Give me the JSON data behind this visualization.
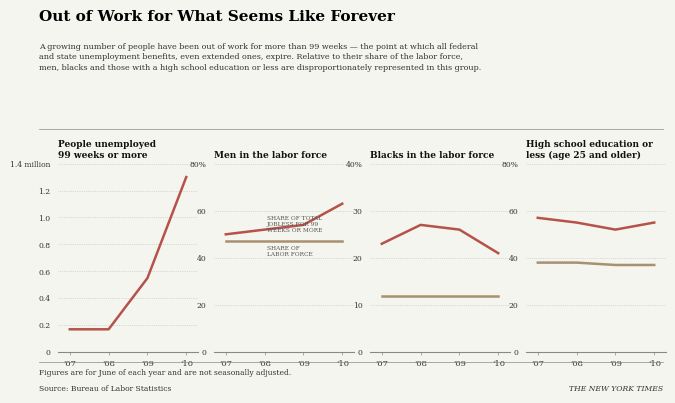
{
  "title": "Out of Work for What Seems Like Forever",
  "subtitle": "A growing number of people have been out of work for more than 99 weeks — the point at which all federal\nand state unemployment benefits, even extended ones, expire. Relative to their share of the labor force,\nmen, blacks and those with a high school education or less are disproportionately represented in this group.",
  "footer1": "Figures are for June of each year and are not seasonally adjusted.",
  "footer2": "Source: Bureau of Labor Statistics",
  "footer3": "THE NEW YORK TIMES",
  "panel_titles": [
    "People unemployed\n99 weeks or more",
    "Men in the labor force",
    "Blacks in the labor force",
    "High school education or\nless (age 25 and older)"
  ],
  "years": [
    "'07",
    "'08",
    "'09",
    "'10"
  ],
  "panel1": {
    "line": [
      0.17,
      0.17,
      0.55,
      1.3
    ],
    "ylim": [
      0,
      1.4
    ],
    "yticks": [
      0,
      0.2,
      0.4,
      0.6,
      0.8,
      1.0,
      1.2,
      1.4
    ],
    "ytick_labels": [
      "0",
      "0.2",
      "0.4",
      "0.6",
      "0.8",
      "1.0",
      "1.2",
      "1.4 million"
    ],
    "color_line": "#b5534a"
  },
  "panel2": {
    "line_red": [
      50,
      52,
      54,
      63
    ],
    "line_tan": [
      47,
      47,
      47,
      47
    ],
    "ylim": [
      0,
      80
    ],
    "yticks": [
      0,
      20,
      40,
      60,
      80
    ],
    "ytick_labels": [
      "0",
      "20",
      "40",
      "60",
      "80%"
    ],
    "annotation_red": "SHARE OF TOTAL\nJOBLESS FOR 99\nWEEKS OR MORE",
    "annotation_tan": "SHARE OF\nLABOR FORCE",
    "color_red": "#b5534a",
    "color_tan": "#a89070"
  },
  "panel3": {
    "line_red": [
      23,
      27,
      26,
      21
    ],
    "line_tan": [
      12,
      12,
      12,
      12
    ],
    "ylim": [
      0,
      40
    ],
    "yticks": [
      0,
      10,
      20,
      30,
      40
    ],
    "ytick_labels": [
      "0",
      "10",
      "20",
      "30",
      "40%"
    ],
    "color_red": "#b5534a",
    "color_tan": "#a89070"
  },
  "panel4": {
    "line_red": [
      57,
      55,
      52,
      55
    ],
    "line_tan": [
      38,
      38,
      37,
      37
    ],
    "ylim": [
      0,
      80
    ],
    "yticks": [
      0,
      20,
      40,
      60,
      80
    ],
    "ytick_labels": [
      "0",
      "20",
      "40",
      "60",
      "80%"
    ],
    "color_red": "#b5534a",
    "color_tan": "#a89070"
  },
  "bg_color": "#f5f5ef",
  "line_width": 1.8,
  "dotted_color": "#cccccc"
}
